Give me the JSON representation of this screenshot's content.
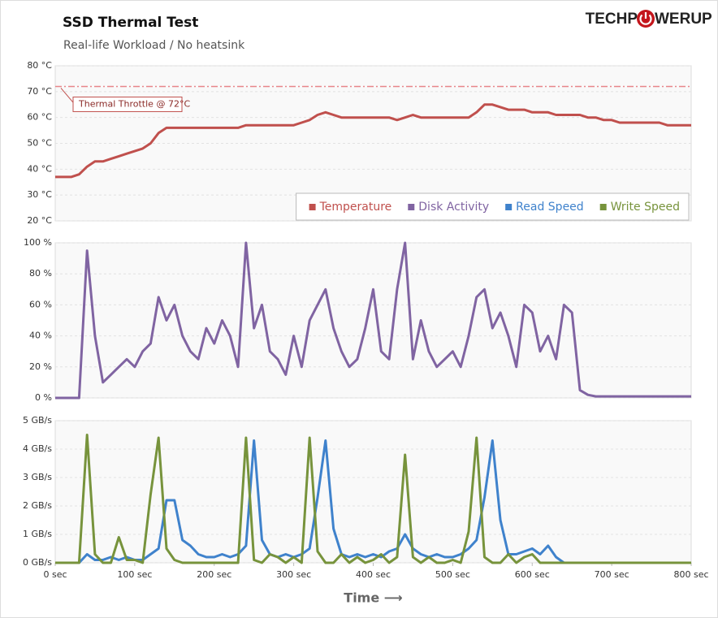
{
  "title": "SSD Thermal Test",
  "subtitle": "Real-life Workload / No heatsink",
  "logo": [
    "TECHP",
    "WERUP"
  ],
  "chart_data": [
    {
      "type": "line",
      "xlim": [
        0,
        800
      ],
      "ylim": [
        20,
        80
      ],
      "yticks": [
        {
          "value": 20,
          "label": "20 °C"
        },
        {
          "value": 30,
          "label": "30 °C"
        },
        {
          "value": 40,
          "label": "40 °C"
        },
        {
          "value": 50,
          "label": "50 °C"
        },
        {
          "value": 60,
          "label": "60 °C"
        },
        {
          "value": 70,
          "label": "70 °C"
        },
        {
          "value": 80,
          "label": "80 °C"
        }
      ],
      "grid": true,
      "legend": "lower right",
      "threshold": {
        "value": 72,
        "label": "Thermal Throttle @ 72°C",
        "color": "#e8868a"
      },
      "x": [
        0,
        10,
        20,
        30,
        40,
        50,
        60,
        70,
        80,
        90,
        100,
        110,
        120,
        130,
        140,
        150,
        160,
        170,
        180,
        190,
        200,
        210,
        220,
        230,
        240,
        250,
        260,
        270,
        280,
        290,
        300,
        310,
        320,
        330,
        340,
        350,
        360,
        370,
        380,
        390,
        400,
        410,
        420,
        430,
        440,
        450,
        460,
        470,
        480,
        490,
        500,
        510,
        520,
        530,
        540,
        550,
        560,
        570,
        580,
        590,
        600,
        610,
        620,
        630,
        640,
        650,
        660,
        670,
        680,
        690,
        700,
        710,
        720,
        730,
        740,
        750,
        760,
        770,
        780,
        790,
        800
      ],
      "series": [
        {
          "name": "Temperature",
          "color": "#c0504d",
          "values": [
            37,
            37,
            37,
            38,
            41,
            43,
            43,
            44,
            45,
            46,
            47,
            48,
            50,
            54,
            56,
            56,
            56,
            56,
            56,
            56,
            56,
            56,
            56,
            56,
            57,
            57,
            57,
            57,
            57,
            57,
            57,
            58,
            59,
            61,
            62,
            61,
            60,
            60,
            60,
            60,
            60,
            60,
            60,
            59,
            60,
            61,
            60,
            60,
            60,
            60,
            60,
            60,
            60,
            62,
            65,
            65,
            64,
            63,
            63,
            63,
            62,
            62,
            62,
            61,
            61,
            61,
            61,
            60,
            60,
            59,
            59,
            58,
            58,
            58,
            58,
            58,
            58,
            57,
            57,
            57,
            57
          ]
        }
      ]
    },
    {
      "type": "line",
      "xlim": [
        0,
        800
      ],
      "ylim": [
        0,
        100
      ],
      "yticks": [
        {
          "value": 0,
          "label": "0 %"
        },
        {
          "value": 20,
          "label": "20 %"
        },
        {
          "value": 40,
          "label": "40 %"
        },
        {
          "value": 60,
          "label": "60 %"
        },
        {
          "value": 80,
          "label": "80 %"
        },
        {
          "value": 100,
          "label": "100 %"
        }
      ],
      "grid": true,
      "x": [
        0,
        10,
        20,
        30,
        40,
        50,
        60,
        70,
        80,
        90,
        100,
        110,
        120,
        130,
        140,
        150,
        160,
        170,
        180,
        190,
        200,
        210,
        220,
        230,
        240,
        250,
        260,
        270,
        280,
        290,
        300,
        310,
        320,
        330,
        340,
        350,
        360,
        370,
        380,
        390,
        400,
        410,
        420,
        430,
        440,
        450,
        460,
        470,
        480,
        490,
        500,
        510,
        520,
        530,
        540,
        550,
        560,
        570,
        580,
        590,
        600,
        610,
        620,
        630,
        640,
        650,
        660,
        670,
        680,
        690,
        700,
        710,
        720,
        730,
        740,
        750,
        760,
        770,
        780,
        790,
        800
      ],
      "series": [
        {
          "name": "Disk Activity",
          "color": "#8064a2",
          "values": [
            0,
            0,
            0,
            0,
            95,
            40,
            10,
            15,
            20,
            25,
            20,
            30,
            35,
            65,
            50,
            60,
            40,
            30,
            25,
            45,
            35,
            50,
            40,
            20,
            100,
            45,
            60,
            30,
            25,
            15,
            40,
            20,
            50,
            60,
            70,
            45,
            30,
            20,
            25,
            45,
            70,
            30,
            25,
            70,
            100,
            25,
            50,
            30,
            20,
            25,
            30,
            20,
            40,
            65,
            70,
            45,
            55,
            40,
            20,
            60,
            55,
            30,
            40,
            25,
            60,
            55,
            5,
            2,
            1,
            1,
            1,
            1,
            1,
            1,
            1,
            1,
            1,
            1,
            1,
            1,
            1
          ]
        }
      ]
    },
    {
      "type": "line",
      "xlim": [
        0,
        800
      ],
      "ylim": [
        0,
        5
      ],
      "yticks": [
        {
          "value": 0,
          "label": "0 GB/s"
        },
        {
          "value": 1,
          "label": "1 GB/s"
        },
        {
          "value": 2,
          "label": "2 GB/s"
        },
        {
          "value": 3,
          "label": "3 GB/s"
        },
        {
          "value": 4,
          "label": "4 GB/s"
        },
        {
          "value": 5,
          "label": "5 GB/s"
        }
      ],
      "xticks": [
        {
          "value": 0,
          "label": "0 sec"
        },
        {
          "value": 100,
          "label": "100 sec"
        },
        {
          "value": 200,
          "label": "200 sec"
        },
        {
          "value": 300,
          "label": "300 sec"
        },
        {
          "value": 400,
          "label": "400 sec"
        },
        {
          "value": 500,
          "label": "500 sec"
        },
        {
          "value": 600,
          "label": "600 sec"
        },
        {
          "value": 700,
          "label": "700 sec"
        },
        {
          "value": 800,
          "label": "800 sec"
        }
      ],
      "xlabel": "Time ⟶",
      "grid": true,
      "x": [
        0,
        10,
        20,
        30,
        40,
        50,
        60,
        70,
        80,
        90,
        100,
        110,
        120,
        130,
        140,
        150,
        160,
        170,
        180,
        190,
        200,
        210,
        220,
        230,
        240,
        250,
        260,
        270,
        280,
        290,
        300,
        310,
        320,
        330,
        340,
        350,
        360,
        370,
        380,
        390,
        400,
        410,
        420,
        430,
        440,
        450,
        460,
        470,
        480,
        490,
        500,
        510,
        520,
        530,
        540,
        550,
        560,
        570,
        580,
        590,
        600,
        610,
        620,
        630,
        640,
        650,
        660,
        670,
        680,
        690,
        700,
        710,
        720,
        730,
        740,
        750,
        760,
        770,
        780,
        790,
        800
      ],
      "series": [
        {
          "name": "Read Speed",
          "color": "#3f82cc",
          "values": [
            0,
            0,
            0,
            0,
            0.3,
            0.1,
            0.1,
            0.2,
            0.1,
            0.2,
            0.1,
            0.1,
            0.3,
            0.5,
            2.2,
            2.2,
            0.8,
            0.6,
            0.3,
            0.2,
            0.2,
            0.3,
            0.2,
            0.3,
            0.6,
            4.3,
            0.8,
            0.3,
            0.2,
            0.3,
            0.2,
            0.3,
            0.5,
            2.3,
            4.3,
            1.2,
            0.3,
            0.2,
            0.3,
            0.2,
            0.3,
            0.2,
            0.4,
            0.5,
            1,
            0.5,
            0.3,
            0.2,
            0.3,
            0.2,
            0.2,
            0.3,
            0.5,
            0.8,
            2.3,
            4.3,
            1.5,
            0.3,
            0.3,
            0.4,
            0.5,
            0.3,
            0.6,
            0.2,
            0,
            0,
            0,
            0,
            0,
            0,
            0,
            0,
            0,
            0,
            0,
            0,
            0,
            0,
            0,
            0,
            0
          ]
        },
        {
          "name": "Write Speed",
          "color": "#77933c",
          "values": [
            0,
            0,
            0,
            0,
            4.5,
            0.3,
            0,
            0,
            0.9,
            0.1,
            0.1,
            0,
            2.4,
            4.4,
            0.5,
            0.1,
            0,
            0,
            0,
            0,
            0,
            0,
            0,
            0,
            4.4,
            0.1,
            0,
            0.3,
            0.2,
            0,
            0.2,
            0,
            4.4,
            0.4,
            0,
            0,
            0.3,
            0,
            0.2,
            0,
            0.1,
            0.3,
            0,
            0.2,
            3.8,
            0.2,
            0,
            0.2,
            0,
            0,
            0.1,
            0,
            1.1,
            4.4,
            0.2,
            0,
            0,
            0.3,
            0,
            0.2,
            0.3,
            0,
            0,
            0,
            0,
            0,
            0,
            0,
            0,
            0,
            0,
            0,
            0,
            0,
            0,
            0,
            0,
            0,
            0,
            0,
            0
          ]
        }
      ]
    }
  ]
}
